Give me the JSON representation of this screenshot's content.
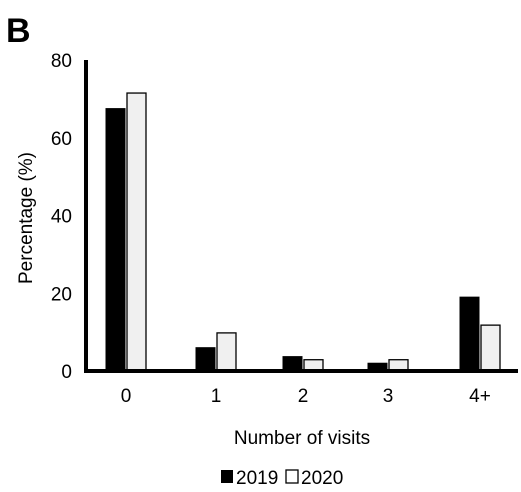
{
  "panel_label": "B",
  "colors": {
    "series_2019_fill": "#000000",
    "series_2020_fill": "#f0f0f0",
    "bar_stroke": "#000000",
    "axis": "#000000"
  },
  "chart_data": {
    "type": "bar",
    "categories": [
      "0",
      "1",
      "2",
      "3",
      "4+"
    ],
    "series": [
      {
        "name": "2019",
        "values": [
          67.5,
          6,
          3.7,
          2,
          19
        ]
      },
      {
        "name": "2020",
        "values": [
          71.5,
          9.8,
          2.9,
          2.9,
          11.8
        ]
      }
    ],
    "title": "",
    "xlabel": "Number of visits",
    "ylabel": "Percentage (%)",
    "ylim": [
      0,
      80
    ],
    "yticks": [
      "0",
      "20",
      "40",
      "60",
      "80"
    ],
    "grid": false,
    "legend_position": "bottom-center",
    "legend": [
      {
        "marker": "filled-square",
        "label": "2019"
      },
      {
        "marker": "open-square",
        "label": "2020"
      }
    ]
  }
}
